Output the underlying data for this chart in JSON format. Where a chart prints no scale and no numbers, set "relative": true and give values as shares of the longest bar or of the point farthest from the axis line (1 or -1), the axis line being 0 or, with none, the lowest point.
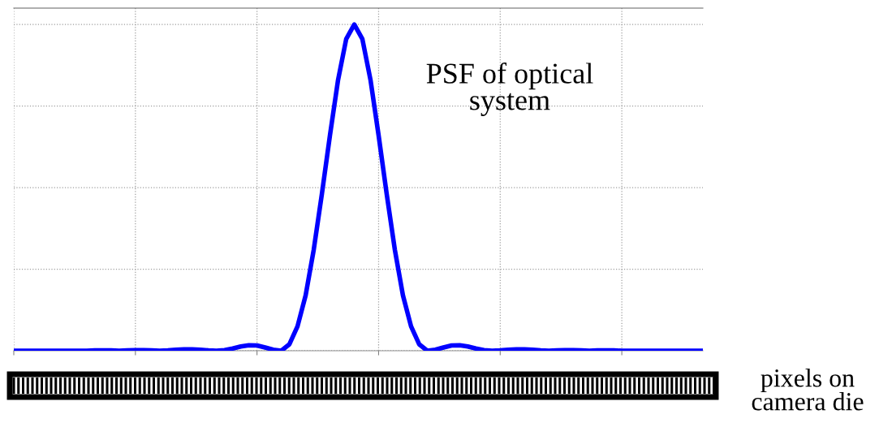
{
  "chart_data": {
    "type": "line",
    "relative": true,
    "grid": true,
    "line_style": "solid",
    "categories": [
      null,
      null,
      null,
      null,
      null,
      null,
      null,
      null,
      null,
      null,
      null,
      null,
      null,
      null,
      null,
      null,
      null,
      null,
      null,
      null,
      null,
      null,
      null,
      null,
      null,
      null,
      null,
      null,
      null,
      null,
      null,
      null,
      null,
      null,
      null,
      null,
      null,
      null,
      null,
      null,
      null,
      null,
      null,
      null,
      null,
      null,
      null,
      null,
      null,
      null,
      null,
      null,
      null,
      null,
      null,
      null,
      null,
      null,
      null,
      null,
      null,
      null,
      null,
      null,
      null,
      null,
      null,
      null,
      null,
      null,
      null,
      null,
      null,
      null,
      null,
      null,
      null,
      null,
      null,
      null,
      null,
      null,
      null,
      null,
      null,
      null
    ],
    "series": [
      {
        "color": "#0000ff",
        "values": [
          0,
          0,
          0,
          0,
          0,
          0,
          0,
          0,
          0,
          0,
          0.001,
          0.001,
          0.001,
          0,
          0.001,
          0.002,
          0.002,
          0.001,
          0,
          0.001,
          0.003,
          0.004,
          0.004,
          0.003,
          0.001,
          0,
          0.002,
          0.007,
          0.013,
          0.017,
          0.016,
          0.01,
          0.003,
          0,
          0.02,
          0.075,
          0.17,
          0.31,
          0.48,
          0.66,
          0.83,
          0.955,
          1.0,
          0.955,
          0.83,
          0.66,
          0.48,
          0.31,
          0.17,
          0.075,
          0.02,
          0,
          0.003,
          0.01,
          0.016,
          0.017,
          0.013,
          0.007,
          0.002,
          0,
          0.001,
          0.003,
          0.004,
          0.004,
          0.003,
          0.001,
          0,
          0.001,
          0.002,
          0.002,
          0.001,
          0,
          0.001,
          0.001,
          0.001,
          0,
          0,
          0,
          0,
          0,
          0,
          0,
          0,
          0,
          0,
          0
        ]
      }
    ],
    "annotations": [
      "PSF of optical system",
      "pixels on camera die"
    ]
  }
}
